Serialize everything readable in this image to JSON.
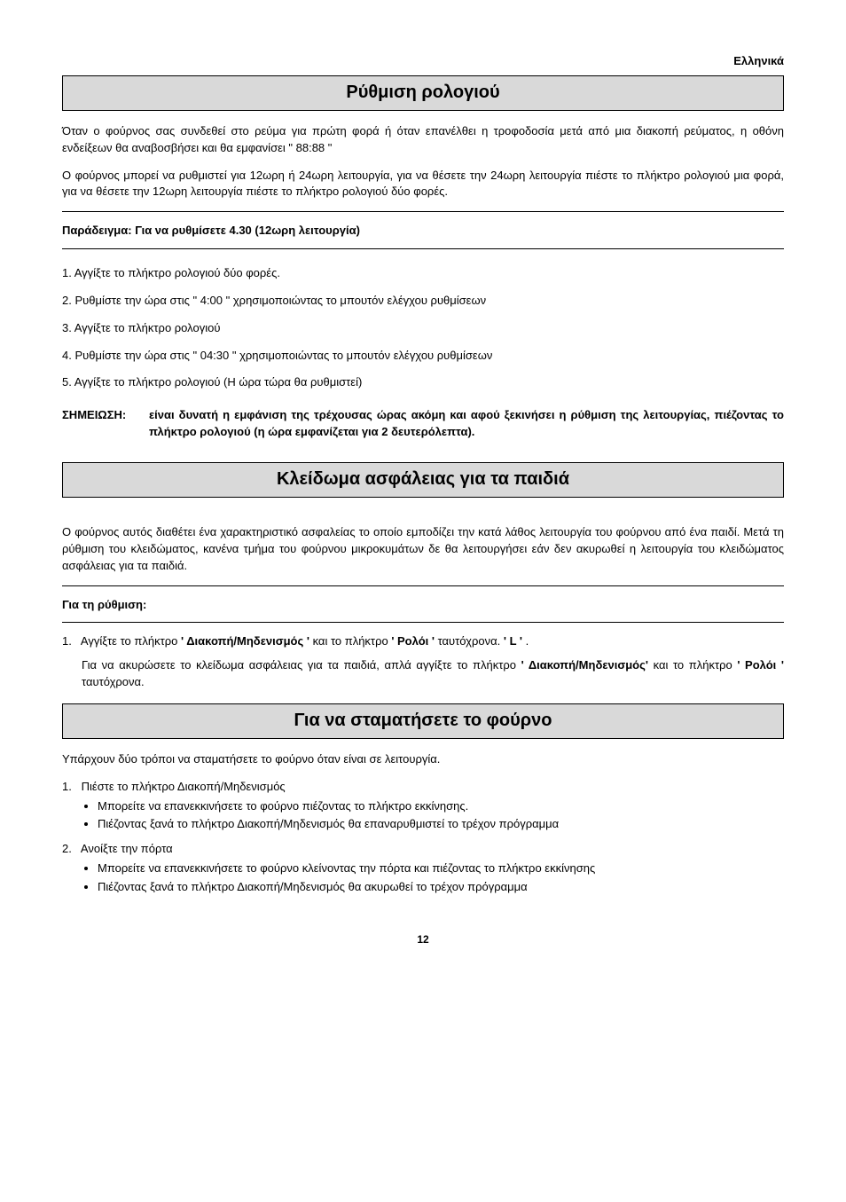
{
  "lang_tag": "Ελληνικά",
  "page_number": "12",
  "s1": {
    "title": "Ρύθμιση ρολογιού",
    "p1": "Όταν ο φούρνος σας συνδεθεί στο ρεύμα για πρώτη φορά ή όταν επανέλθει η τροφοδοσία μετά από μια διακοπή ρεύματος, η οθόνη ενδείξεων θα αναβοσβήσει και θα εμφανίσει \" 88:88 \"",
    "p2": "Ο φούρνος μπορεί να ρυθμιστεί για 12ωρη ή 24ωρη λειτουργία, για να θέσετε την 24ωρη λειτουργία πιέστε το πλήκτρο ρολογιού μια φορά, για να θέσετε την 12ωρη λειτουργία πιέστε το πλήκτρο ρολογιού δύο φορές.",
    "example_label": "Παράδειγμα: Για να ρυθμίσετε 4.30 (12ωρη λειτουργία)",
    "steps": {
      "i1": "1.   Αγγίξτε το πλήκτρο ρολογιού δύο φορές.",
      "i2": "2.   Ρυθμίστε την ώρα στις \" 4:00 \" χρησιμοποιώντας το μπουτόν ελέγχου ρυθμίσεων",
      "i3": "3.   Αγγίξτε το πλήκτρο ρολογιού",
      "i4": "4.   Ρυθμίστε την ώρα στις \" 04:30 \" χρησιμοποιώντας το μπουτόν ελέγχου ρυθμίσεων",
      "i5": "5.   Αγγίξτε το πλήκτρο ρολογιού (Η ώρα τώρα θα ρυθμιστεί)"
    },
    "note_label": "ΣΗΜΕΙΩΣΗ:",
    "note_text": "είναι δυνατή η εμφάνιση της τρέχουσας ώρας ακόμη και αφού ξεκινήσει η ρύθμιση της λειτουργίας, πιέζοντας το πλήκτρο ρολογιού (η ώρα εμφανίζεται για 2 δευτερόλεπτα)."
  },
  "s2": {
    "title": "Κλείδωμα ασφάλειας για τα παιδιά",
    "p1": "Ο φούρνος αυτός διαθέτει ένα χαρακτηριστικό ασφαλείας το οποίο εμποδίζει την κατά λάθος λειτουργία του φούρνου από ένα παιδί. Μετά τη ρύθμιση του κλειδώματος, κανένα τμήμα του φούρνου μικροκυμάτων δε θα λειτουργήσει εάν δεν ακυρωθεί η λειτουργία του κλειδώματος ασφάλειας για τα παιδιά.",
    "set_label": "Για τη ρύθμιση:",
    "step1": {
      "num": "1.",
      "pre": "Αγγίξτε το πλήκτρο ",
      "b1": "' Διακοπή/Μηδενισμός '",
      "mid1": " και το πλήκτρο ",
      "b2": "' Ρολόι '",
      "mid2": " ταυτόχρονα. ",
      "b3": "' L '",
      "post": " ."
    },
    "cancel": {
      "pre": "Για να ακυρώσετε το κλείδωμα ασφάλειας για τα παιδιά, απλά αγγίξτε το πλήκτρο ",
      "b1": "' Διακοπή/Μηδενισμός'",
      "mid": " και το πλήκτρο ",
      "b2": "' Ρολόι '",
      "post": " ταυτόχρονα."
    }
  },
  "s3": {
    "title": "Για να σταματήσετε το φούρνο",
    "p1": "Υπάρχουν δύο τρόποι να σταματήσετε το φούρνο όταν είναι σε λειτουργία.",
    "step1": {
      "num": "1.",
      "text": "Πιέστε το πλήκτρο Διακοπή/Μηδενισμός",
      "b1": "Μπορείτε να επανεκκινήσετε το φούρνο πιέζοντας το πλήκτρο εκκίνησης.",
      "b2": "Πιέζοντας ξανά το πλήκτρο Διακοπή/Μηδενισμός θα επαναρυθμιστεί το τρέχον πρόγραμμα"
    },
    "step2": {
      "num": "2.",
      "text": "Ανοίξτε την πόρτα",
      "b1": "Μπορείτε να επανεκκινήσετε το φούρνο κλείνοντας την πόρτα και πιέζοντας το πλήκτρο εκκίνησης",
      "b2": "Πιέζοντας ξανά το πλήκτρο Διακοπή/Μηδενισμός θα ακυρωθεί το τρέχον πρόγραμμα"
    }
  }
}
